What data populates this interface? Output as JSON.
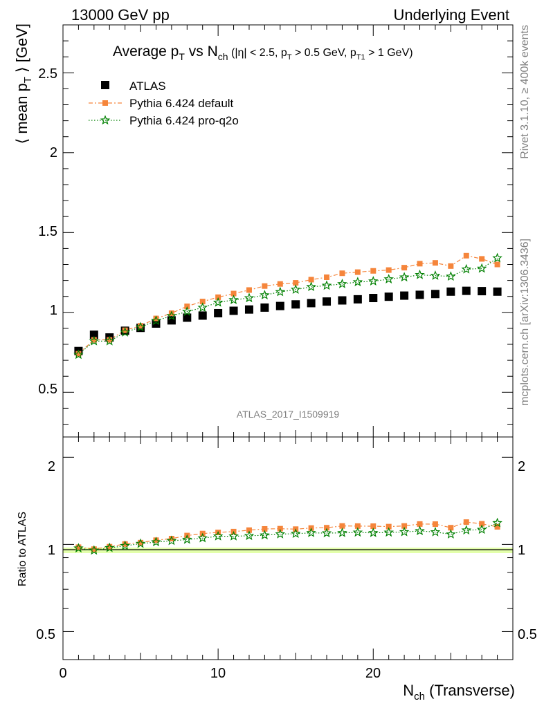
{
  "header": {
    "left": "13000 GeV pp",
    "right": "Underlying Event"
  },
  "side_labels": {
    "rivet": "Rivet 3.1.10, ≥ 400k events",
    "mcplots": "mcplots.cern.ch [arXiv:1306.3436]"
  },
  "main_panel": {
    "title_text": "Average p_T vs N_ch (|η| < 2.5, p_T > 0.5 GeV, p_T1 > 1 GeV)",
    "ylabel": "⟨ mean p_T ⟩ [GeV]",
    "analysis_id": "ATLAS_2017_I1509919",
    "ytick_labels": [
      "0.5",
      "1",
      "1.5",
      "2",
      "2.5"
    ]
  },
  "ratio_panel": {
    "ylabel": "Ratio to ATLAS",
    "ytick_labels": [
      "0.5",
      "1",
      "2"
    ]
  },
  "xaxis": {
    "label": "N_ch (Transverse)",
    "tick_labels": [
      "0",
      "10",
      "20"
    ]
  },
  "legend": {
    "placement": "top-left",
    "entries": [
      {
        "key": "atlas",
        "label": "ATLAS"
      },
      {
        "key": "default",
        "label": "Pythia 6.424 default"
      },
      {
        "key": "proq2o",
        "label": "Pythia 6.424 pro-q2o"
      }
    ]
  },
  "colors": {
    "atlas": "#000000",
    "default": "#f5853b",
    "proq2o": "#008000",
    "ratio_band": "#ccff66"
  },
  "chart_data": [
    {
      "type": "scatter",
      "xlim": [
        0,
        29
      ],
      "ylim": [
        0.22,
        2.8
      ],
      "xlabel": "N_ch (Transverse)",
      "ylabel": "⟨ mean p_T ⟩ [GeV]",
      "title": "Average p_T vs N_ch (|η| < 2.5, p_T > 0.5 GeV, p_T1 > 1 GeV)",
      "x": [
        1,
        2,
        3,
        4,
        5,
        6,
        7,
        8,
        9,
        10,
        11,
        12,
        13,
        14,
        15,
        16,
        17,
        18,
        19,
        20,
        21,
        22,
        23,
        24,
        25,
        26,
        27,
        28
      ],
      "series": [
        {
          "name": "ATLAS",
          "marker": "square",
          "values": [
            0.758,
            0.86,
            0.843,
            0.885,
            0.903,
            0.93,
            0.95,
            0.967,
            0.98,
            0.995,
            1.01,
            1.018,
            1.03,
            1.04,
            1.05,
            1.058,
            1.068,
            1.075,
            1.082,
            1.09,
            1.098,
            1.105,
            1.11,
            1.115,
            1.13,
            1.135,
            1.133,
            1.13
          ]
        },
        {
          "name": "Pythia 6.424 default",
          "marker": "filled-square-dashed",
          "values": [
            0.741,
            0.828,
            0.828,
            0.888,
            0.916,
            0.962,
            0.995,
            1.038,
            1.068,
            1.095,
            1.118,
            1.14,
            1.165,
            1.178,
            1.185,
            1.205,
            1.22,
            1.245,
            1.252,
            1.26,
            1.265,
            1.28,
            1.305,
            1.31,
            1.29,
            1.355,
            1.335,
            1.3
          ]
        },
        {
          "name": "Pythia 6.424 pro-q2o",
          "marker": "open-star-dotted",
          "values": [
            0.735,
            0.82,
            0.82,
            0.875,
            0.908,
            0.948,
            0.978,
            1.005,
            1.03,
            1.062,
            1.078,
            1.09,
            1.108,
            1.128,
            1.143,
            1.16,
            1.168,
            1.178,
            1.19,
            1.195,
            1.208,
            1.22,
            1.235,
            1.23,
            1.225,
            1.27,
            1.275,
            1.34
          ]
        }
      ]
    },
    {
      "type": "scatter",
      "xlim": [
        0,
        29
      ],
      "ylim": [
        0.4,
        2.35
      ],
      "ylabel": "Ratio to ATLAS",
      "log_scale": true,
      "x": [
        1,
        2,
        3,
        4,
        5,
        6,
        7,
        8,
        9,
        10,
        11,
        12,
        13,
        14,
        15,
        16,
        17,
        18,
        19,
        20,
        21,
        22,
        23,
        24,
        25,
        26,
        27,
        28
      ],
      "series": [
        {
          "name": "Pythia 6.424 default",
          "values": [
            0.978,
            0.963,
            0.982,
            1.003,
            1.014,
            1.034,
            1.047,
            1.073,
            1.09,
            1.1,
            1.107,
            1.12,
            1.131,
            1.133,
            1.129,
            1.139,
            1.142,
            1.158,
            1.157,
            1.156,
            1.152,
            1.158,
            1.176,
            1.175,
            1.142,
            1.194,
            1.178,
            1.15
          ]
        },
        {
          "name": "Pythia 6.424 pro-q2o",
          "values": [
            0.97,
            0.953,
            0.973,
            0.989,
            1.006,
            1.019,
            1.029,
            1.039,
            1.051,
            1.067,
            1.067,
            1.071,
            1.076,
            1.085,
            1.089,
            1.096,
            1.094,
            1.096,
            1.1,
            1.096,
            1.1,
            1.104,
            1.113,
            1.103,
            1.084,
            1.119,
            1.125,
            1.186
          ]
        }
      ]
    }
  ]
}
